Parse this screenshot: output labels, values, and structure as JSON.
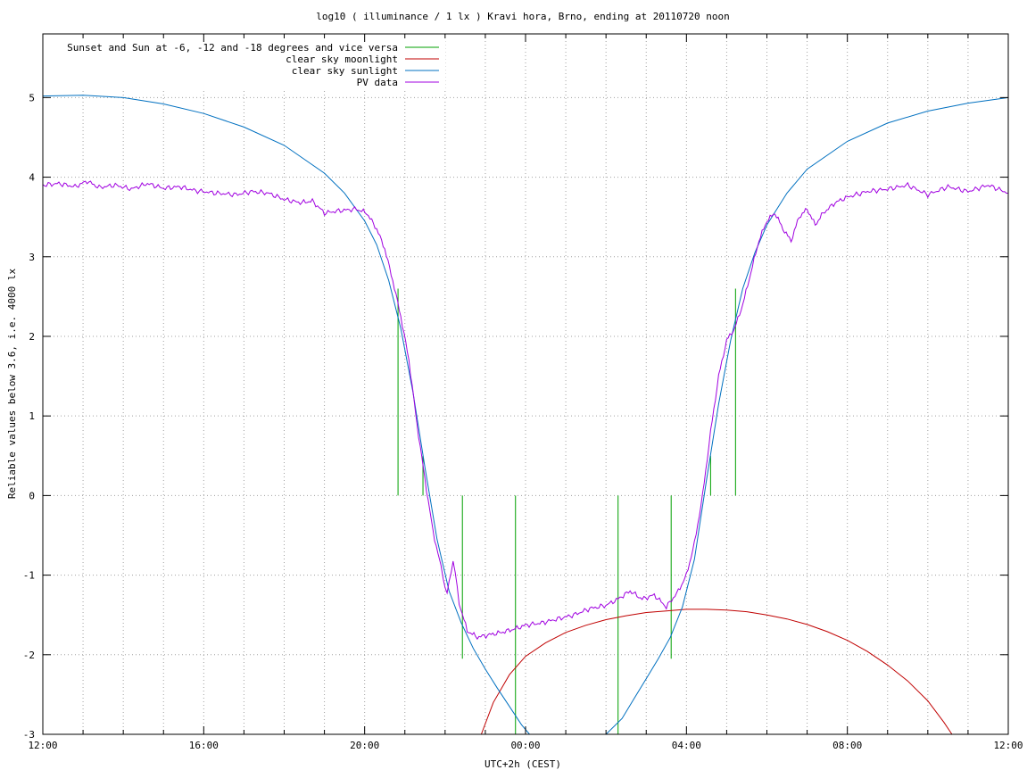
{
  "chart_data": {
    "type": "line",
    "title": "log10 ( illuminance / 1 lx ) Kravi hora, Brno, ending at 20110720 noon",
    "xlabel": "UTC+2h (CEST)",
    "ylabel": "Reliable values below 3.6, i.e. 4000 lx",
    "xlim_hours": [
      12,
      36
    ],
    "ylim": [
      -3,
      5.8
    ],
    "grid": true,
    "legend_position": "top-left",
    "x_ticks": [
      {
        "label": "12:00",
        "h": 12
      },
      {
        "label": "16:00",
        "h": 16
      },
      {
        "label": "20:00",
        "h": 20
      },
      {
        "label": "00:00",
        "h": 24
      },
      {
        "label": "04:00",
        "h": 28
      },
      {
        "label": "08:00",
        "h": 32
      },
      {
        "label": "12:00",
        "h": 36
      }
    ],
    "y_ticks": [
      {
        "label": "5",
        "v": 5
      },
      {
        "label": "4",
        "v": 4
      },
      {
        "label": "3",
        "v": 3
      },
      {
        "label": "2",
        "v": 2
      },
      {
        "label": "1",
        "v": 1
      },
      {
        "label": "0",
        "v": 0
      },
      {
        "label": "-1",
        "v": -1
      },
      {
        "label": "-2",
        "v": -2
      },
      {
        "label": "-3",
        "v": -3
      }
    ],
    "series": [
      {
        "name": "Sunset and Sun at -6, -12 and -18 degrees and vice versa",
        "color": "#00a000",
        "kind": "markers",
        "markers": [
          {
            "x": 20.83,
            "y0": 0,
            "y1": 2.6
          },
          {
            "x": 21.45,
            "y0": 0,
            "y1": 0.5
          },
          {
            "x": 22.43,
            "y0": -2.05,
            "y1": 0
          },
          {
            "x": 23.75,
            "y0": -3,
            "y1": 0
          },
          {
            "x": 26.3,
            "y0": -3,
            "y1": 0
          },
          {
            "x": 27.62,
            "y0": -2.05,
            "y1": 0
          },
          {
            "x": 28.6,
            "y0": 0,
            "y1": 0.5
          },
          {
            "x": 29.22,
            "y0": 0,
            "y1": 2.6
          }
        ]
      },
      {
        "name": "clear sky moonlight",
        "color": "#c00000",
        "kind": "line",
        "points": [
          [
            22.9,
            -3.0
          ],
          [
            23.2,
            -2.6
          ],
          [
            23.6,
            -2.25
          ],
          [
            24.0,
            -2.02
          ],
          [
            24.5,
            -1.85
          ],
          [
            25.0,
            -1.72
          ],
          [
            25.5,
            -1.63
          ],
          [
            26.0,
            -1.56
          ],
          [
            26.5,
            -1.51
          ],
          [
            27.0,
            -1.47
          ],
          [
            27.5,
            -1.45
          ],
          [
            28.0,
            -1.43
          ],
          [
            28.5,
            -1.43
          ],
          [
            29.0,
            -1.44
          ],
          [
            29.5,
            -1.46
          ],
          [
            30.0,
            -1.5
          ],
          [
            30.5,
            -1.55
          ],
          [
            31.0,
            -1.62
          ],
          [
            31.5,
            -1.71
          ],
          [
            32.0,
            -1.82
          ],
          [
            32.5,
            -1.96
          ],
          [
            33.0,
            -2.13
          ],
          [
            33.5,
            -2.33
          ],
          [
            34.0,
            -2.58
          ],
          [
            34.4,
            -2.85
          ],
          [
            34.6,
            -3.0
          ]
        ]
      },
      {
        "name": "clear sky sunlight",
        "color": "#0070c0",
        "kind": "line",
        "points": [
          [
            12.0,
            5.02
          ],
          [
            13.0,
            5.03
          ],
          [
            14.0,
            5.0
          ],
          [
            15.0,
            4.92
          ],
          [
            16.0,
            4.8
          ],
          [
            17.0,
            4.63
          ],
          [
            18.0,
            4.4
          ],
          [
            19.0,
            4.05
          ],
          [
            19.5,
            3.8
          ],
          [
            20.0,
            3.45
          ],
          [
            20.3,
            3.15
          ],
          [
            20.6,
            2.7
          ],
          [
            20.9,
            2.1
          ],
          [
            21.2,
            1.3
          ],
          [
            21.5,
            0.35
          ],
          [
            21.8,
            -0.55
          ],
          [
            22.1,
            -1.2
          ],
          [
            22.4,
            -1.6
          ],
          [
            22.7,
            -1.92
          ],
          [
            23.0,
            -2.18
          ],
          [
            23.3,
            -2.42
          ],
          [
            23.6,
            -2.65
          ],
          [
            23.9,
            -2.88
          ],
          [
            24.1,
            -3.0
          ],
          [
            26.0,
            -3.0
          ],
          [
            26.4,
            -2.8
          ],
          [
            26.7,
            -2.55
          ],
          [
            27.0,
            -2.3
          ],
          [
            27.3,
            -2.05
          ],
          [
            27.6,
            -1.78
          ],
          [
            27.9,
            -1.4
          ],
          [
            28.2,
            -0.8
          ],
          [
            28.5,
            0.2
          ],
          [
            28.8,
            1.15
          ],
          [
            29.1,
            1.95
          ],
          [
            29.4,
            2.6
          ],
          [
            29.7,
            3.05
          ],
          [
            30.0,
            3.4
          ],
          [
            30.5,
            3.8
          ],
          [
            31.0,
            4.1
          ],
          [
            32.0,
            4.45
          ],
          [
            33.0,
            4.68
          ],
          [
            34.0,
            4.83
          ],
          [
            35.0,
            4.93
          ],
          [
            36.0,
            5.0
          ]
        ]
      },
      {
        "name": "PV data",
        "color": "#a000e0",
        "kind": "line",
        "points": [
          [
            12.0,
            3.9
          ],
          [
            12.4,
            3.92
          ],
          [
            12.8,
            3.88
          ],
          [
            13.1,
            3.95
          ],
          [
            13.4,
            3.87
          ],
          [
            13.8,
            3.9
          ],
          [
            14.2,
            3.85
          ],
          [
            14.6,
            3.92
          ],
          [
            15.0,
            3.86
          ],
          [
            15.4,
            3.88
          ],
          [
            15.8,
            3.83
          ],
          [
            16.3,
            3.8
          ],
          [
            16.8,
            3.78
          ],
          [
            17.2,
            3.82
          ],
          [
            17.6,
            3.8
          ],
          [
            18.0,
            3.72
          ],
          [
            18.4,
            3.68
          ],
          [
            18.7,
            3.7
          ],
          [
            19.0,
            3.55
          ],
          [
            19.4,
            3.58
          ],
          [
            19.8,
            3.6
          ],
          [
            20.05,
            3.55
          ],
          [
            20.3,
            3.35
          ],
          [
            20.5,
            3.1
          ],
          [
            20.7,
            2.7
          ],
          [
            20.9,
            2.25
          ],
          [
            21.1,
            1.7
          ],
          [
            21.3,
            0.9
          ],
          [
            21.5,
            0.2
          ],
          [
            21.7,
            -0.45
          ],
          [
            21.9,
            -0.9
          ],
          [
            22.05,
            -1.25
          ],
          [
            22.2,
            -0.8
          ],
          [
            22.35,
            -1.35
          ],
          [
            22.55,
            -1.7
          ],
          [
            22.8,
            -1.78
          ],
          [
            23.1,
            -1.75
          ],
          [
            23.4,
            -1.72
          ],
          [
            23.7,
            -1.68
          ],
          [
            24.0,
            -1.63
          ],
          [
            24.4,
            -1.6
          ],
          [
            24.8,
            -1.55
          ],
          [
            25.2,
            -1.5
          ],
          [
            25.6,
            -1.42
          ],
          [
            26.0,
            -1.38
          ],
          [
            26.3,
            -1.3
          ],
          [
            26.6,
            -1.2
          ],
          [
            26.9,
            -1.3
          ],
          [
            27.2,
            -1.25
          ],
          [
            27.5,
            -1.4
          ],
          [
            27.8,
            -1.2
          ],
          [
            28.0,
            -1.0
          ],
          [
            28.2,
            -0.6
          ],
          [
            28.4,
            0.0
          ],
          [
            28.6,
            0.8
          ],
          [
            28.8,
            1.5
          ],
          [
            29.0,
            1.95
          ],
          [
            29.2,
            2.1
          ],
          [
            29.4,
            2.4
          ],
          [
            29.6,
            2.8
          ],
          [
            29.8,
            3.2
          ],
          [
            30.0,
            3.45
          ],
          [
            30.2,
            3.55
          ],
          [
            30.4,
            3.35
          ],
          [
            30.6,
            3.2
          ],
          [
            30.8,
            3.5
          ],
          [
            31.0,
            3.6
          ],
          [
            31.2,
            3.4
          ],
          [
            31.4,
            3.55
          ],
          [
            31.7,
            3.68
          ],
          [
            32.0,
            3.75
          ],
          [
            32.5,
            3.82
          ],
          [
            33.0,
            3.85
          ],
          [
            33.5,
            3.9
          ],
          [
            34.0,
            3.78
          ],
          [
            34.5,
            3.88
          ],
          [
            35.0,
            3.82
          ],
          [
            35.5,
            3.9
          ],
          [
            36.0,
            3.8
          ]
        ]
      }
    ]
  }
}
